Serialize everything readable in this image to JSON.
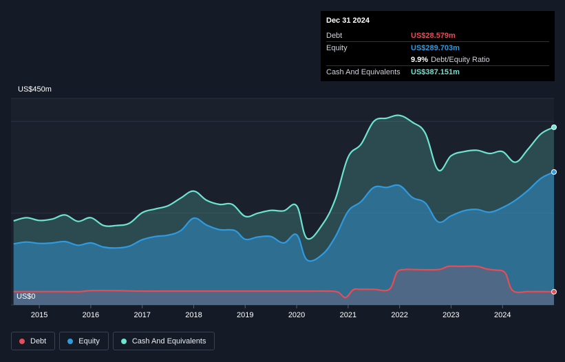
{
  "tooltip": {
    "date": "Dec 31 2024",
    "debt_label": "Debt",
    "debt_value": "US$28.579m",
    "equity_label": "Equity",
    "equity_value": "US$289.703m",
    "ratio_value": "9.9%",
    "ratio_label": "Debt/Equity Ratio",
    "cash_label": "Cash And Equivalents",
    "cash_value": "US$387.151m"
  },
  "colors": {
    "debt": "#e84c56",
    "equity": "#2f9ae0",
    "cash": "#6de3d0",
    "background": "#151b26"
  },
  "legend": [
    {
      "label": "Debt",
      "color": "#e84c56"
    },
    {
      "label": "Equity",
      "color": "#2f9ae0"
    },
    {
      "label": "Cash And Equivalents",
      "color": "#6de3d0"
    }
  ],
  "chart_data": {
    "type": "area",
    "y_max_label": "US$450m",
    "y_min_label": "US$0",
    "ylim": [
      0,
      450
    ],
    "x_ticks": [
      "2015",
      "2016",
      "2017",
      "2018",
      "2019",
      "2020",
      "2021",
      "2022",
      "2023",
      "2024"
    ],
    "xlim": [
      2014.45,
      2025.0
    ],
    "series": [
      {
        "name": "Debt",
        "x": [
          2014.5,
          2015.0,
          2015.5,
          2015.8,
          2016.0,
          2016.5,
          2017.0,
          2017.5,
          2018.0,
          2018.5,
          2019.0,
          2019.5,
          2020.0,
          2020.3,
          2020.6,
          2020.8,
          2020.95,
          2021.1,
          2021.25,
          2021.5,
          2021.8,
          2021.95,
          2022.1,
          2022.3,
          2022.75,
          2022.95,
          2023.2,
          2023.5,
          2023.7,
          2023.85,
          2024.05,
          2024.2,
          2024.5,
          2024.75,
          2025.0
        ],
        "values": [
          29,
          29,
          29,
          29,
          31,
          31,
          30,
          30,
          30,
          30,
          30,
          30,
          30,
          30,
          30,
          28,
          16,
          33,
          34,
          34,
          34,
          71,
          77,
          77,
          77,
          84,
          84,
          84,
          78,
          76,
          70,
          31,
          29,
          29,
          28.6
        ]
      },
      {
        "name": "Equity",
        "x": [
          2014.5,
          2014.75,
          2015.0,
          2015.25,
          2015.5,
          2015.75,
          2016.0,
          2016.25,
          2016.5,
          2016.75,
          2017.0,
          2017.25,
          2017.5,
          2017.75,
          2018.0,
          2018.25,
          2018.5,
          2018.8,
          2019.0,
          2019.25,
          2019.5,
          2019.75,
          2020.0,
          2020.2,
          2020.5,
          2020.75,
          2021.0,
          2021.25,
          2021.5,
          2021.75,
          2022.0,
          2022.25,
          2022.5,
          2022.75,
          2023.0,
          2023.25,
          2023.5,
          2023.75,
          2024.0,
          2024.25,
          2024.5,
          2024.75,
          2025.0
        ],
        "values": [
          133,
          137,
          134,
          135,
          138,
          130,
          135,
          126,
          124,
          128,
          142,
          149,
          152,
          162,
          189,
          174,
          164,
          162,
          143,
          148,
          149,
          135,
          153,
          98,
          110,
          148,
          204,
          225,
          256,
          256,
          260,
          234,
          222,
          181,
          194,
          205,
          208,
          202,
          212,
          228,
          250,
          276,
          289.7
        ]
      },
      {
        "name": "Cash And Equivalents",
        "x": [
          2014.5,
          2014.75,
          2015.0,
          2015.25,
          2015.5,
          2015.75,
          2016.0,
          2016.25,
          2016.5,
          2016.75,
          2017.0,
          2017.25,
          2017.5,
          2017.75,
          2018.0,
          2018.25,
          2018.5,
          2018.75,
          2019.0,
          2019.25,
          2019.5,
          2019.75,
          2020.0,
          2020.2,
          2020.5,
          2020.75,
          2021.0,
          2021.25,
          2021.5,
          2021.75,
          2022.0,
          2022.25,
          2022.5,
          2022.75,
          2023.0,
          2023.25,
          2023.5,
          2023.75,
          2024.0,
          2024.25,
          2024.5,
          2024.75,
          2025.0
        ],
        "values": [
          183,
          190,
          184,
          187,
          196,
          182,
          190,
          173,
          173,
          178,
          201,
          209,
          216,
          233,
          248,
          228,
          219,
          219,
          193,
          200,
          206,
          205,
          216,
          145,
          175,
          230,
          322,
          350,
          400,
          407,
          413,
          398,
          374,
          294,
          325,
          334,
          337,
          330,
          334,
          311,
          340,
          373,
          387.2
        ]
      }
    ],
    "grid": true,
    "legend_position": "bottom-left"
  }
}
